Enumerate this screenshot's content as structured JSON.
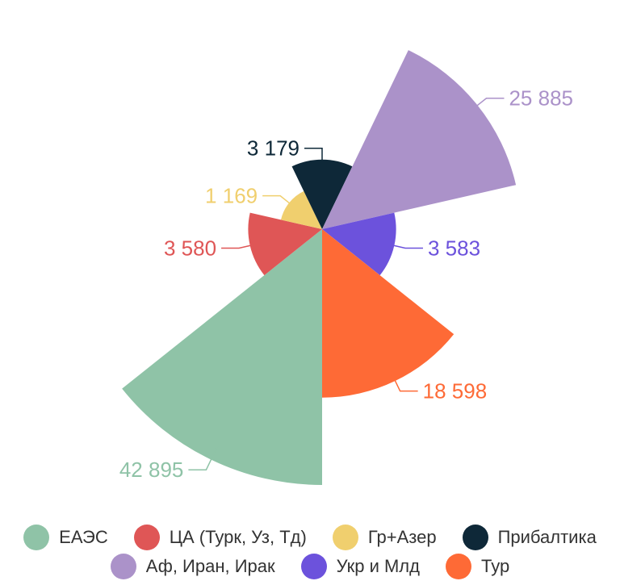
{
  "chart_data": {
    "type": "polar-area",
    "title": "",
    "max_radius_value": 42895,
    "series": [
      {
        "name": "ЕАЭС",
        "value": 42895,
        "label": "42 895",
        "color": "#8fc3a7"
      },
      {
        "name": "ЦА (Турк, Уз, Тд)",
        "value": 3580,
        "label": "3 580",
        "color": "#df5656"
      },
      {
        "name": "Гр+Азер",
        "value": 1169,
        "label": "1 169",
        "color": "#f0cf6e"
      },
      {
        "name": "Прибалтика",
        "value": 3179,
        "label": "3 179",
        "color": "#0e2838"
      },
      {
        "name": "Аф, Иран, Ирак",
        "value": 25885,
        "label": "25 885",
        "color": "#ab92c9"
      },
      {
        "name": "Укр и Млд",
        "value": 3583,
        "label": "3 583",
        "color": "#6c52dc"
      },
      {
        "name": "Тур",
        "value": 18598,
        "label": "18 598",
        "color": "#fe6a36"
      }
    ]
  },
  "legend": {
    "rows": [
      [
        {
          "label": "ЕАЭС",
          "color": "#8fc3a7"
        },
        {
          "label": "ЦА (Турк, Уз, Тд)",
          "color": "#df5656"
        },
        {
          "label": "Гр+Азер",
          "color": "#f0cf6e"
        },
        {
          "label": "Прибалтика",
          "color": "#0e2838"
        }
      ],
      [
        {
          "label": "Аф, Иран, Ирак",
          "color": "#ab92c9"
        },
        {
          "label": "Укр и Млд",
          "color": "#6c52dc"
        },
        {
          "label": "Тур",
          "color": "#fe6a36"
        }
      ]
    ]
  }
}
